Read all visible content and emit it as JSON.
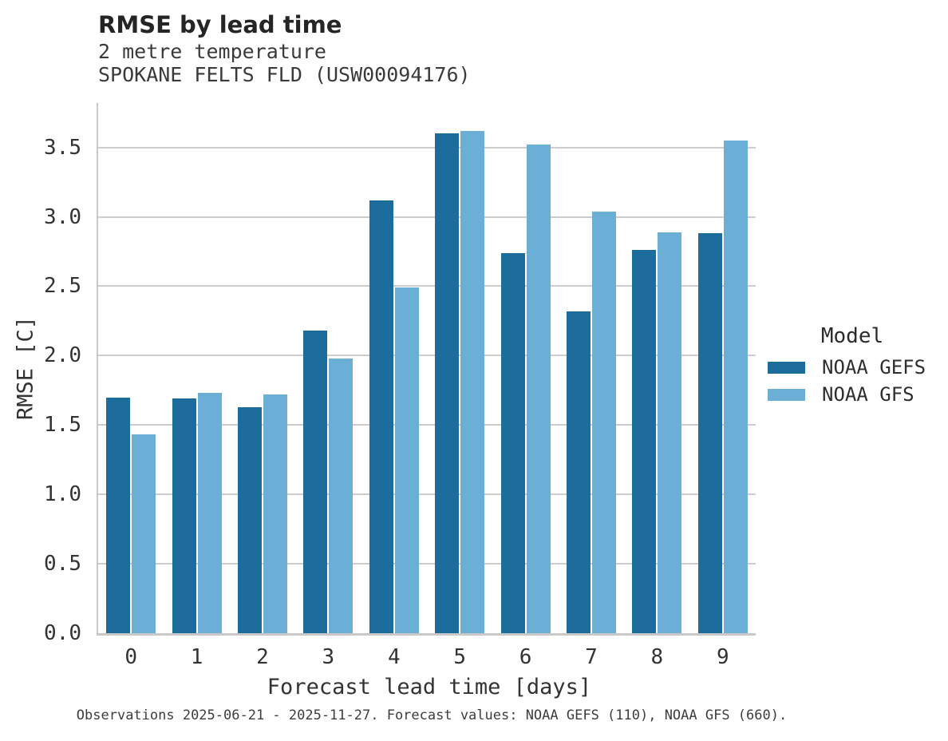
{
  "chart_data": {
    "type": "bar",
    "title": "RMSE by lead time",
    "subtitle": [
      "2 metre temperature",
      "SPOKANE FELTS FLD (USW00094176)"
    ],
    "xlabel": "Forecast lead time [days]",
    "ylabel": "RMSE [C]",
    "categories": [
      "0",
      "1",
      "2",
      "3",
      "4",
      "5",
      "6",
      "7",
      "8",
      "9"
    ],
    "series": [
      {
        "name": "NOAA GEFS",
        "color": "#1C6D9C",
        "values": [
          1.7,
          1.69,
          1.63,
          2.18,
          3.12,
          3.6,
          2.74,
          2.32,
          2.76,
          2.88
        ]
      },
      {
        "name": "NOAA GFS",
        "color": "#6CAFD6",
        "values": [
          1.43,
          1.73,
          1.72,
          1.98,
          2.49,
          3.62,
          3.52,
          3.04,
          2.89,
          3.55
        ]
      }
    ],
    "ylim": [
      0,
      3.82
    ],
    "yticks": [
      "0.0",
      "0.5",
      "1.0",
      "1.5",
      "2.0",
      "2.5",
      "3.0",
      "3.5"
    ],
    "grid": "horizontal",
    "legend": {
      "title": "Model",
      "position": "right"
    },
    "caption": "Observations 2025-06-21 - 2025-11-27. Forecast values: NOAA GEFS (110), NOAA GFS (660)."
  },
  "colors": {
    "noaa_gefs": "#1C6D9C",
    "noaa_gfs": "#6CAFD6",
    "spine": "#c9c9c9",
    "gridline": "#cdcdcd",
    "text": "#333333"
  }
}
